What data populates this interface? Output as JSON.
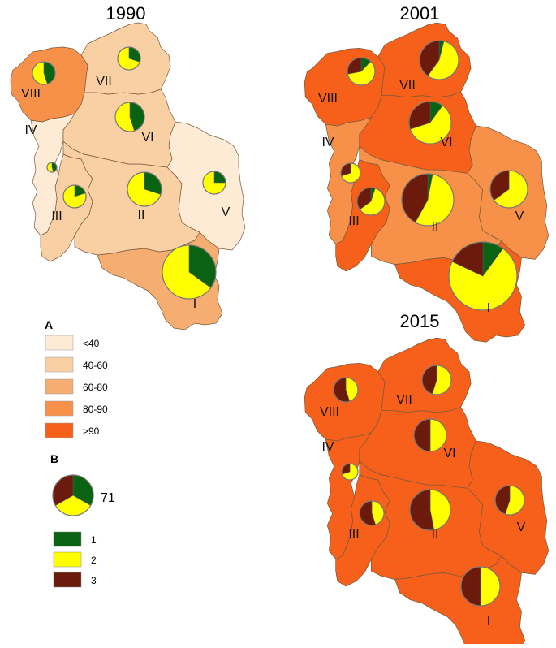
{
  "colors": {
    "lt40": "#fdebd6",
    "40-60": "#f9cfa4",
    "60-80": "#f6ad72",
    "80-90": "#f7914a",
    "gt90": "#f6601b",
    "class1": "#0a6312",
    "class2": "#ffff00",
    "class3": "#6b1a0c"
  },
  "legend_a": {
    "title": "A",
    "items": [
      {
        "label": "<40",
        "color": "#fdebd6"
      },
      {
        "label": "40-60",
        "color": "#f9cfa4"
      },
      {
        "label": "60-80",
        "color": "#f6ad72"
      },
      {
        "label": "80-90",
        "color": "#f7914a"
      },
      {
        "label": ">90",
        "color": "#f6601b"
      }
    ]
  },
  "legend_b": {
    "title": "B",
    "sample_value": "71",
    "sample_shares": [
      1,
      1,
      1
    ],
    "items": [
      {
        "label": "1",
        "color": "#0a6312"
      },
      {
        "label": "2",
        "color": "#ffff00"
      },
      {
        "label": "3",
        "color": "#6b1a0c"
      }
    ]
  },
  "maps": [
    {
      "title": "1990",
      "districts": [
        {
          "label": "I",
          "fill": "60-80",
          "shares": [
            0.35,
            0.65,
            0
          ]
        },
        {
          "label": "II",
          "fill": "40-60",
          "shares": [
            0.3,
            0.7,
            0
          ]
        },
        {
          "label": "III",
          "fill": "40-60",
          "shares": [
            0.2,
            0.8,
            0
          ]
        },
        {
          "label": "IV",
          "fill": "lt40",
          "shares": [
            0.45,
            0.55,
            0
          ]
        },
        {
          "label": "V",
          "fill": "lt40",
          "shares": [
            0.25,
            0.75,
            0
          ]
        },
        {
          "label": "VI",
          "fill": "40-60",
          "shares": [
            0.45,
            0.55,
            0
          ]
        },
        {
          "label": "VII",
          "fill": "40-60",
          "shares": [
            0.3,
            0.7,
            0
          ]
        },
        {
          "label": "VIII",
          "fill": "80-90",
          "shares": [
            0.45,
            0.55,
            0
          ]
        }
      ]
    },
    {
      "title": "2001",
      "districts": [
        {
          "label": "I",
          "fill": "gt90",
          "shares": [
            0.1,
            0.72,
            0.18
          ]
        },
        {
          "label": "II",
          "fill": "80-90",
          "shares": [
            0.03,
            0.55,
            0.42
          ]
        },
        {
          "label": "III",
          "fill": "gt90",
          "shares": [
            0.05,
            0.6,
            0.35
          ]
        },
        {
          "label": "IV",
          "fill": "80-90",
          "shares": [
            0,
            0.7,
            0.3
          ]
        },
        {
          "label": "V",
          "fill": "80-90",
          "shares": [
            0,
            0.65,
            0.35
          ]
        },
        {
          "label": "VI",
          "fill": "gt90",
          "shares": [
            0.1,
            0.6,
            0.3
          ]
        },
        {
          "label": "VII",
          "fill": "gt90",
          "shares": [
            0.04,
            0.56,
            0.4
          ]
        },
        {
          "label": "VIII",
          "fill": "gt90",
          "shares": [
            0.12,
            0.6,
            0.28
          ]
        }
      ]
    },
    {
      "title": "2015",
      "districts": [
        {
          "label": "I",
          "fill": "gt90",
          "shares": [
            0,
            0.5,
            0.5
          ]
        },
        {
          "label": "II",
          "fill": "gt90",
          "shares": [
            0,
            0.47,
            0.53
          ]
        },
        {
          "label": "III",
          "fill": "gt90",
          "shares": [
            0,
            0.45,
            0.55
          ]
        },
        {
          "label": "IV",
          "fill": "gt90",
          "shares": [
            0,
            0.7,
            0.3
          ]
        },
        {
          "label": "V",
          "fill": "gt90",
          "shares": [
            0,
            0.55,
            0.45
          ]
        },
        {
          "label": "VI",
          "fill": "gt90",
          "shares": [
            0,
            0.5,
            0.5
          ]
        },
        {
          "label": "VII",
          "fill": "gt90",
          "shares": [
            0,
            0.55,
            0.45
          ]
        },
        {
          "label": "VIII",
          "fill": "gt90",
          "shares": [
            0,
            0.45,
            0.55
          ]
        }
      ]
    }
  ]
}
